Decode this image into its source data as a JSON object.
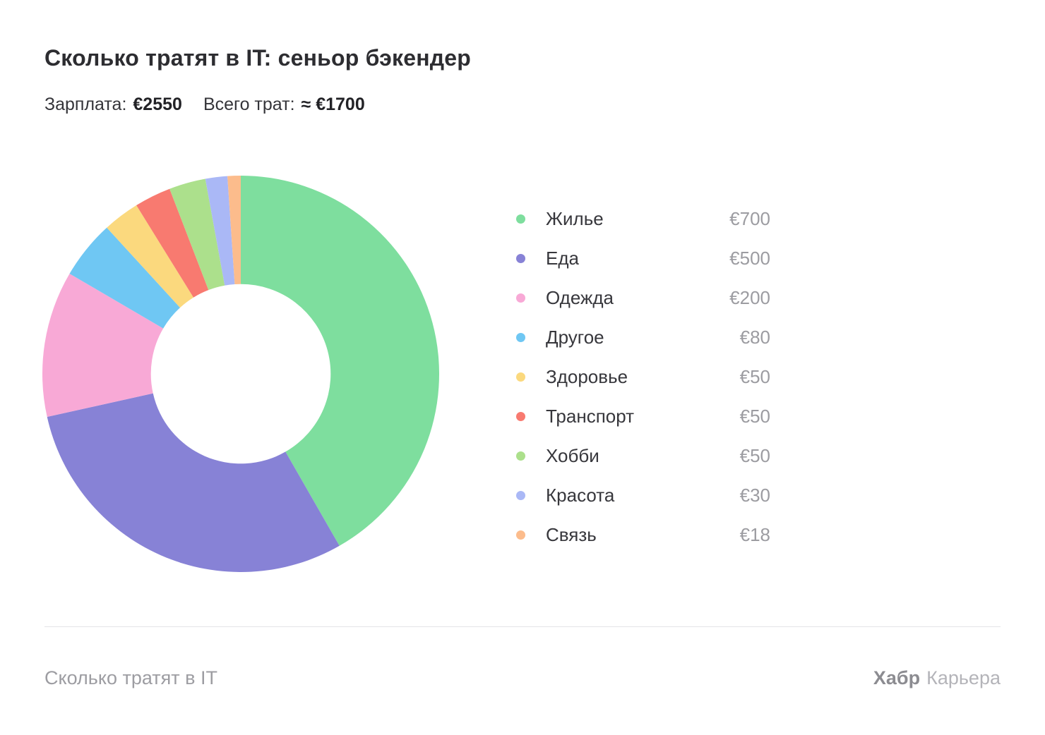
{
  "header": {
    "title": "Сколько тратят в IT: сеньор бэкендер",
    "salary_label": "Зарплата:",
    "salary_value": "€2550",
    "total_label": "Всего трат:",
    "total_value": "≈ €1700"
  },
  "chart_data": {
    "type": "pie",
    "subtype": "donut",
    "title": "Сколько тратят в IT: сеньор бэкендер",
    "units": "EUR",
    "start_angle_deg": -90,
    "direction": "clockwise",
    "inner_radius_ratio": 0.453,
    "legend_position": "right",
    "categories": [
      "Жилье",
      "Еда",
      "Одежда",
      "Другое",
      "Здоровье",
      "Транспорт",
      "Хобби",
      "Красота",
      "Связь"
    ],
    "values": [
      700,
      500,
      200,
      80,
      50,
      50,
      50,
      30,
      18
    ],
    "value_labels": [
      "€700",
      "€500",
      "€200",
      "€80",
      "€50",
      "€50",
      "€50",
      "€30",
      "€18"
    ],
    "colors": [
      "#7ede9e",
      "#8782d6",
      "#f8a9d6",
      "#6fc7f3",
      "#fbd97e",
      "#f87a70",
      "#ace08c",
      "#aab8f6",
      "#fcbc8c"
    ],
    "annotations": [
      "Зарплата: €2550",
      "Всего трат: ≈ €1700"
    ]
  },
  "footer": {
    "left_text": "Сколько тратят в IT",
    "brand_primary": "Хабр",
    "brand_secondary": "Карьера"
  }
}
